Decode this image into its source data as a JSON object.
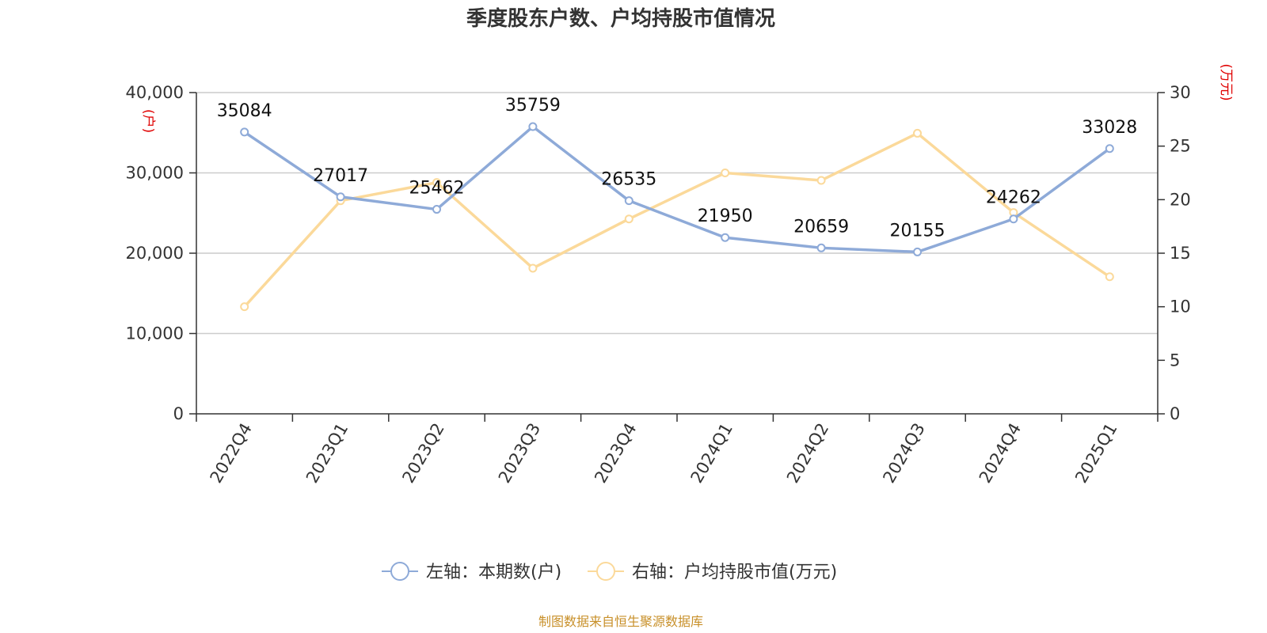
{
  "chart_data": {
    "type": "line",
    "title": "季度股东户数、户均持股市值情况",
    "categories": [
      "2022Q4",
      "2023Q1",
      "2023Q2",
      "2023Q3",
      "2023Q4",
      "2024Q1",
      "2024Q2",
      "2024Q3",
      "2024Q4",
      "2025Q1"
    ],
    "series": [
      {
        "name": "左轴：本期数(户)",
        "axis": "left",
        "color": "#8eaad8",
        "values": [
          35084,
          27017,
          25462,
          35759,
          26535,
          21950,
          20659,
          20155,
          24262,
          33028
        ],
        "show_labels": true
      },
      {
        "name": "右轴：户均持股市值(万元)",
        "axis": "right",
        "color": "#fbd99a",
        "values": [
          10.0,
          19.9,
          21.6,
          13.6,
          18.2,
          22.5,
          21.8,
          26.2,
          18.8,
          12.8
        ],
        "show_labels": false
      }
    ],
    "left_axis": {
      "unit": "(户)",
      "ylim": [
        0,
        40000
      ],
      "ticks": [
        "0",
        "10,000",
        "20,000",
        "30,000",
        "40,000"
      ],
      "tick_values": [
        0,
        10000,
        20000,
        30000,
        40000
      ]
    },
    "right_axis": {
      "unit": "(万元)",
      "ylim": [
        0,
        30
      ],
      "ticks": [
        "0",
        "5",
        "10",
        "15",
        "20",
        "25",
        "30"
      ],
      "tick_values": [
        0,
        5,
        10,
        15,
        20,
        25,
        30
      ]
    },
    "grid": true,
    "legend_position": "bottom-center",
    "source": "制图数据来自恒生聚源数据库"
  }
}
